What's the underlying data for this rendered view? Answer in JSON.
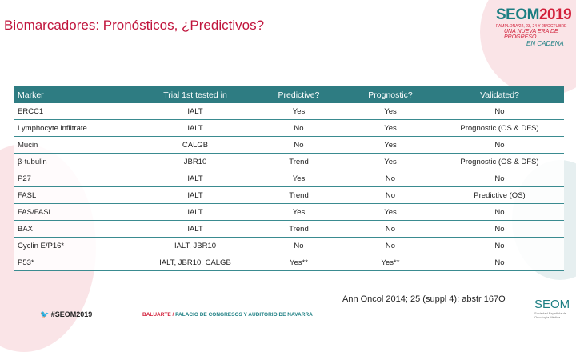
{
  "title": "Biomarcadores: Pronósticos, ¿Predictivos?",
  "logo": {
    "name": "SEOM",
    "year": "2019",
    "dates": "PAMPLONA/22, 23, 24 Y 25/OCTUBRE",
    "tagline1": "UNA NUEVA ERA DE PROGRESO",
    "tagline2": "EN CADENA"
  },
  "table": {
    "headers": [
      "Marker",
      "Trial 1st tested in",
      "Predictive?",
      "Prognostic?",
      "Validated?"
    ],
    "rows": [
      [
        "ERCC1",
        "IALT",
        "Yes",
        "Yes",
        "No"
      ],
      [
        "Lymphocyte infiltrate",
        "IALT",
        "No",
        "Yes",
        "Prognostic (OS & DFS)"
      ],
      [
        "Mucin",
        "CALGB",
        "No",
        "Yes",
        "No"
      ],
      [
        "β-tubulin",
        "JBR10",
        "Trend",
        "Yes",
        "Prognostic (OS & DFS)"
      ],
      [
        "P27",
        "IALT",
        "Yes",
        "No",
        "No"
      ],
      [
        "FASL",
        "IALT",
        "Trend",
        "No",
        "Predictive (OS)"
      ],
      [
        "FAS/FASL",
        "IALT",
        "Yes",
        "Yes",
        "No"
      ],
      [
        "BAX",
        "IALT",
        "Trend",
        "No",
        "No"
      ],
      [
        "Cyclin E/P16*",
        "IALT, JBR10",
        "No",
        "No",
        "No"
      ],
      [
        "P53*",
        "IALT, JBR10, CALGB",
        "Yes**",
        "Yes**",
        "No"
      ]
    ]
  },
  "reference": "Ann Oncol 2014; 25 (suppl 4): abstr 167O",
  "footer": {
    "hashtag": "#SEOM2019",
    "venue_a": "BALUARTE /",
    "venue_b": " PALACIO DE CONGRESOS Y AUDITORIO DE NAVARRA",
    "seom": "SEOM",
    "seom_sub": "Sociedad Española de Oncología Médica"
  },
  "colors": {
    "accent": "#2e7c82",
    "brand_red": "#d2203a"
  }
}
